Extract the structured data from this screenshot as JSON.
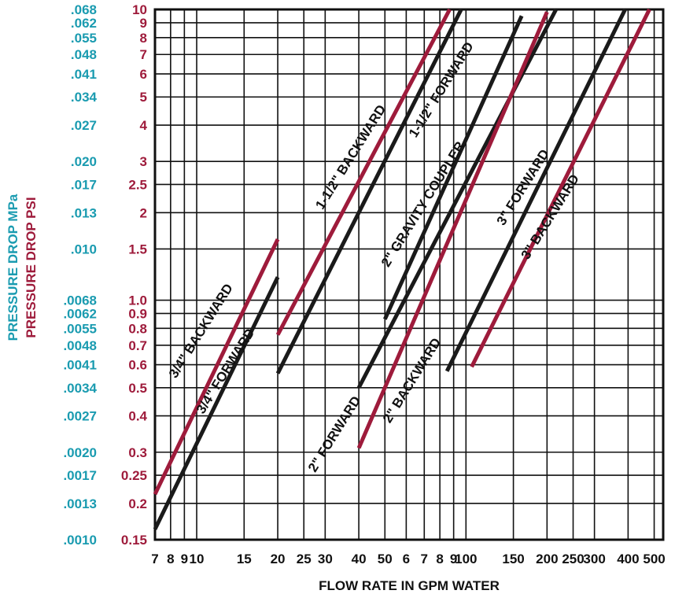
{
  "colors": {
    "psi": "#9e1b3b",
    "mpa": "#1a9bb0",
    "grid": "#111111",
    "black_series": "#1a1a1a",
    "red_series": "#9e1b3b"
  },
  "chart_data": {
    "type": "line",
    "title": "",
    "xlabel": "FLOW RATE IN GPM WATER",
    "ylabel_psi": "PRESSURE DROP PSI",
    "ylabel_mpa": "PRESSURE DROP MPa",
    "x_scale": "log",
    "y_scale": "log",
    "xlim": [
      7,
      540
    ],
    "ylim": [
      0.15,
      10
    ],
    "x_ticks": [
      {
        "v": 7,
        "t": "7"
      },
      {
        "v": 8,
        "t": "8"
      },
      {
        "v": 9,
        "t": "9"
      },
      {
        "v": 10,
        "t": "10"
      },
      {
        "v": 15,
        "t": "15"
      },
      {
        "v": 20,
        "t": "20"
      },
      {
        "v": 25,
        "t": "25"
      },
      {
        "v": 30,
        "t": "30"
      },
      {
        "v": 40,
        "t": "40"
      },
      {
        "v": 50,
        "t": "50"
      },
      {
        "v": 60,
        "t": "6"
      },
      {
        "v": 70,
        "t": "7"
      },
      {
        "v": 80,
        "t": "8"
      },
      {
        "v": 90,
        "t": "9"
      },
      {
        "v": 100,
        "t": "100"
      },
      {
        "v": 150,
        "t": "150"
      },
      {
        "v": 200,
        "t": "200"
      },
      {
        "v": 250,
        "t": "250"
      },
      {
        "v": 300,
        "t": "300"
      },
      {
        "v": 400,
        "t": "400"
      },
      {
        "v": 500,
        "t": "500"
      }
    ],
    "y_ticks": [
      {
        "v": 10,
        "psi": "10",
        "mpa": ".068"
      },
      {
        "v": 9,
        "psi": "9",
        "mpa": ".062"
      },
      {
        "v": 8,
        "psi": "8",
        "mpa": ".055"
      },
      {
        "v": 7,
        "psi": "7",
        "mpa": ".048"
      },
      {
        "v": 6,
        "psi": "6",
        "mpa": ".041"
      },
      {
        "v": 5,
        "psi": "5",
        "mpa": ".034"
      },
      {
        "v": 4,
        "psi": "4",
        "mpa": ".027"
      },
      {
        "v": 3,
        "psi": "3",
        "mpa": ".020"
      },
      {
        "v": 2.5,
        "psi": "2.5",
        "mpa": ".017"
      },
      {
        "v": 2,
        "psi": "2",
        "mpa": ".013"
      },
      {
        "v": 1.5,
        "psi": "1.5",
        "mpa": ".010"
      },
      {
        "v": 1.0,
        "psi": "1.0",
        "mpa": ".0068"
      },
      {
        "v": 0.9,
        "psi": "0.9",
        "mpa": ".0062"
      },
      {
        "v": 0.8,
        "psi": "0.8",
        "mpa": ".0055"
      },
      {
        "v": 0.7,
        "psi": "0.7",
        "mpa": ".0048"
      },
      {
        "v": 0.6,
        "psi": "0.6",
        "mpa": ".0041"
      },
      {
        "v": 0.5,
        "psi": "0.5",
        "mpa": ".0034"
      },
      {
        "v": 0.4,
        "psi": "0.4",
        "mpa": ".0027"
      },
      {
        "v": 0.3,
        "psi": "0.3",
        "mpa": ".0020"
      },
      {
        "v": 0.25,
        "psi": "0.25",
        "mpa": ".0017"
      },
      {
        "v": 0.2,
        "psi": "0.2",
        "mpa": ".0013"
      },
      {
        "v": 0.15,
        "psi": "0.15",
        "mpa": ".0010"
      }
    ],
    "series": [
      {
        "name": "3/4\" BACKWARD",
        "color": "red",
        "points": [
          [
            7,
            0.215
          ],
          [
            20,
            1.62
          ]
        ]
      },
      {
        "name": "3/4\" FORWARD",
        "color": "black",
        "points": [
          [
            7,
            0.163
          ],
          [
            20,
            1.2
          ]
        ]
      },
      {
        "name": "1-1/2\" BACKWARD",
        "color": "red",
        "points": [
          [
            20,
            0.76
          ],
          [
            87,
            10
          ]
        ]
      },
      {
        "name": "1-1/2\" FORWARD",
        "color": "black",
        "points": [
          [
            20,
            0.56
          ],
          [
            96,
            10
          ]
        ]
      },
      {
        "name": "2\" GRAVITY COUPLER",
        "color": "black",
        "points": [
          [
            50,
            0.86
          ],
          [
            161,
            9.5
          ]
        ]
      },
      {
        "name": "2\" FORWARD",
        "color": "black",
        "points": [
          [
            40,
            0.5
          ],
          [
            216,
            10
          ]
        ]
      },
      {
        "name": "2\" BACKWARD",
        "color": "red",
        "points": [
          [
            40,
            0.31
          ],
          [
            200,
            9.8
          ]
        ]
      },
      {
        "name": "3\" FORWARD",
        "color": "black",
        "points": [
          [
            85,
            0.57
          ],
          [
            390,
            10
          ]
        ]
      },
      {
        "name": "3\" BACKWARD",
        "color": "red",
        "points": [
          [
            105,
            0.59
          ],
          [
            480,
            10
          ]
        ]
      }
    ],
    "annotations": [
      {
        "text": "3/4\" BACKWARD",
        "x": 10.7,
        "y": 0.77,
        "angle": -58
      },
      {
        "text": "3/4\" FORWARD",
        "x": 13.2,
        "y": 0.56,
        "angle": -58
      },
      {
        "text": "1-1/2\" BACKWARD",
        "x": 38.5,
        "y": 3.05,
        "angle": -58
      },
      {
        "text": "1-1/2\" FORWARD",
        "x": 83.5,
        "y": 5.2,
        "angle": -58
      },
      {
        "text": "2\" GRAVITY COUPLER",
        "x": 71.5,
        "y": 2.1,
        "angle": -58
      },
      {
        "text": "2\" FORWARD",
        "x": 33.5,
        "y": 0.34,
        "angle": -58
      },
      {
        "text": "2\" BACKWARD",
        "x": 65,
        "y": 0.52,
        "angle": -58
      },
      {
        "text": "3\" FORWARD",
        "x": 168,
        "y": 2.4,
        "angle": -58
      },
      {
        "text": "3\" BACKWARD",
        "x": 212,
        "y": 1.9,
        "angle": -58
      }
    ],
    "grid": true
  }
}
